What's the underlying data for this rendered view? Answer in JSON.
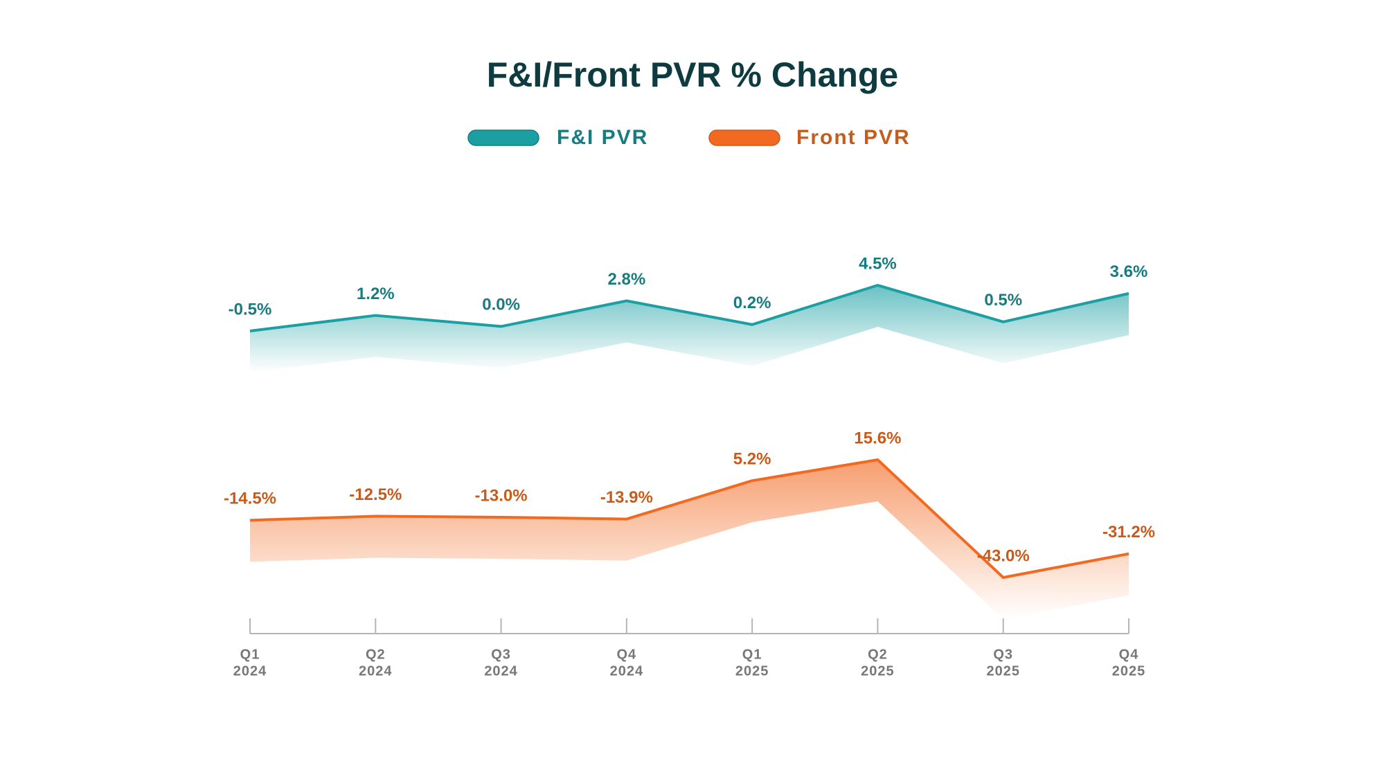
{
  "chart_data": {
    "type": "line",
    "title": "F&I/Front PVR % Change",
    "categories": [
      [
        "Q1",
        "2024"
      ],
      [
        "Q2",
        "2024"
      ],
      [
        "Q3",
        "2024"
      ],
      [
        "Q4",
        "2024"
      ],
      [
        "Q1",
        "2025"
      ],
      [
        "Q2",
        "2025"
      ],
      [
        "Q3",
        "2025"
      ],
      [
        "Q4",
        "2025"
      ]
    ],
    "series": [
      {
        "name": "F&I PVR",
        "color": "#1b9fa3",
        "label_color": "#177b80",
        "values": [
          -0.5,
          1.2,
          0,
          2.8,
          0.2,
          4.5,
          0.5,
          3.6
        ],
        "value_labels": [
          "-0.5%",
          "1.2%",
          "0.0%",
          "2.8%",
          "0.2%",
          "4.5%",
          "0.5%",
          "3.6%"
        ]
      },
      {
        "name": "Front PVR",
        "color": "#f26a21",
        "label_color": "#c75b1b",
        "values": [
          -14.5,
          -12.5,
          -13.0,
          -13.9,
          5.2,
          15.6,
          -43.0,
          -31.2
        ],
        "value_labels": [
          "-14.5%",
          "-12.5%",
          "-13.0%",
          "-13.9%",
          "5.2%",
          "15.6%",
          "-43.0%",
          "-31.2%"
        ]
      }
    ]
  }
}
